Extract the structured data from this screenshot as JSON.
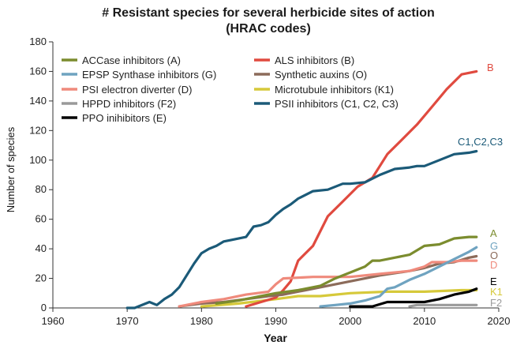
{
  "chart_data": {
    "type": "line",
    "title": "# Resistant species for several herbicide sites of action",
    "subtitle": "(HRAC codes)",
    "xlabel": "Year",
    "ylabel": "Number of species",
    "xlim": [
      1960,
      2020
    ],
    "ylim": [
      0,
      180
    ],
    "xticks": [
      1960,
      1970,
      1980,
      1990,
      2000,
      2010,
      2020
    ],
    "yticks": [
      0,
      20,
      40,
      60,
      80,
      100,
      120,
      140,
      160,
      180
    ],
    "grid": false,
    "series": [
      {
        "name": "ACCase inhibitors (A)",
        "end_label": "A",
        "color": "#7b8c2e",
        "x": [
          1982,
          1985,
          1988,
          1990,
          1993,
          1996,
          1998,
          2000,
          2002,
          2003,
          2004,
          2006,
          2008,
          2010,
          2012,
          2014,
          2016,
          2017
        ],
        "y": [
          3,
          5,
          8,
          10,
          12,
          15,
          20,
          24,
          28,
          32,
          32,
          34,
          36,
          42,
          43,
          47,
          48,
          48
        ]
      },
      {
        "name": "EPSP Synthase inhibitors (G)",
        "end_label": "G",
        "color": "#6fa3c0",
        "x": [
          1996,
          1998,
          2000,
          2002,
          2004,
          2005,
          2006,
          2008,
          2010,
          2012,
          2014,
          2016,
          2017
        ],
        "y": [
          1,
          2,
          3,
          5,
          8,
          13,
          14,
          19,
          23,
          28,
          33,
          38,
          41
        ]
      },
      {
        "name": "PSI electron diverter (D)",
        "end_label": "D",
        "color": "#ef8a7c",
        "x": [
          1977,
          1980,
          1983,
          1986,
          1989,
          1990,
          1991,
          1995,
          1998,
          2000,
          2004,
          2008,
          2010,
          2011,
          2013,
          2015,
          2017
        ],
        "y": [
          1,
          4,
          6,
          9,
          11,
          16,
          20,
          21,
          21,
          21,
          23,
          25,
          28,
          31,
          31,
          32,
          32
        ]
      },
      {
        "name": "HPPD inhibitors (F2)",
        "end_label": "F2",
        "color": "#9a9a9a",
        "x": [
          2008,
          2009,
          2010,
          2012,
          2014,
          2016,
          2017
        ],
        "y": [
          1,
          2,
          2,
          2,
          2,
          2,
          2
        ]
      },
      {
        "name": "PPO inihibitors (E)",
        "end_label": "E",
        "color": "#000000",
        "x": [
          2000,
          2003,
          2005,
          2008,
          2010,
          2012,
          2014,
          2016,
          2017
        ],
        "y": [
          1,
          1,
          4,
          4,
          4,
          6,
          9,
          11,
          13
        ]
      },
      {
        "name": "ALS inhibitors (B)",
        "end_label": "B",
        "color": "#e04a3f",
        "x": [
          1986,
          1988,
          1990,
          1991,
          1992,
          1993,
          1995,
          1997,
          1999,
          2001,
          2003,
          2005,
          2007,
          2009,
          2011,
          2013,
          2015,
          2017
        ],
        "y": [
          1,
          4,
          7,
          12,
          18,
          32,
          42,
          62,
          72,
          82,
          88,
          104,
          114,
          124,
          136,
          148,
          158,
          160
        ]
      },
      {
        "name": "Synthetic auxins (O)",
        "end_label": "O",
        "color": "#8c6b5a",
        "x": [
          1977,
          1980,
          1983,
          1986,
          1989,
          1991,
          1994,
          1997,
          2000,
          2004,
          2008,
          2010,
          2012,
          2014,
          2016,
          2017
        ],
        "y": [
          1,
          3,
          4,
          6,
          8,
          9,
          12,
          15,
          18,
          22,
          25,
          27,
          30,
          31,
          34,
          35
        ]
      },
      {
        "name": "Microtubule inhibitors (K1)",
        "end_label": "K1",
        "color": "#d6c93a",
        "x": [
          1980,
          1985,
          1990,
          1993,
          1996,
          2000,
          2005,
          2010,
          2015,
          2017
        ],
        "y": [
          1,
          3,
          6,
          8,
          8,
          10,
          11,
          11,
          12,
          12
        ]
      },
      {
        "name": "PSII inhibitors (C1, C2, C3)",
        "end_label": "C1,C2,C3",
        "color": "#1b5a78",
        "x": [
          1970,
          1971,
          1972,
          1973,
          1974,
          1975,
          1976,
          1977,
          1978,
          1979,
          1980,
          1981,
          1982,
          1983,
          1984,
          1986,
          1987,
          1988,
          1989,
          1990,
          1991,
          1992,
          1993,
          1995,
          1997,
          1999,
          2000,
          2002,
          2004,
          2006,
          2008,
          2009,
          2010,
          2012,
          2014,
          2016,
          2017
        ],
        "y": [
          0,
          0,
          2,
          4,
          2,
          6,
          9,
          14,
          22,
          30,
          37,
          40,
          42,
          45,
          46,
          48,
          55,
          56,
          58,
          63,
          67,
          70,
          74,
          79,
          80,
          84,
          84,
          85,
          90,
          94,
          95,
          96,
          96,
          100,
          104,
          105,
          106
        ]
      }
    ]
  }
}
